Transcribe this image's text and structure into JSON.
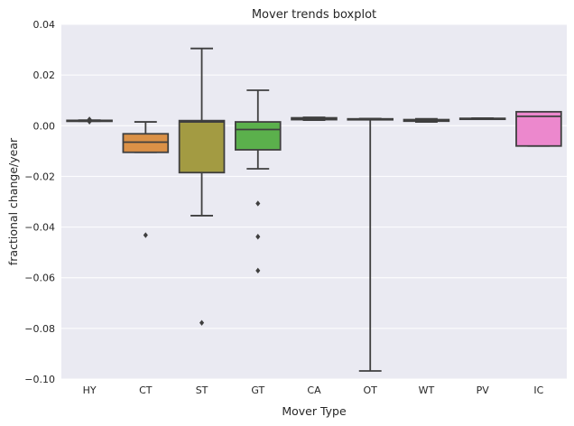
{
  "chart_data": {
    "type": "boxplot",
    "title": "Mover trends boxplot",
    "xlabel": "Mover Type",
    "ylabel": "fractional change/year",
    "ylim": [
      -0.1,
      0.04
    ],
    "yticks": [
      -0.1,
      -0.08,
      -0.06,
      -0.04,
      -0.02,
      0.0,
      0.02,
      0.04
    ],
    "ytick_labels": [
      "−0.10",
      "−0.08",
      "−0.06",
      "−0.04",
      "−0.02",
      "0.00",
      "0.02",
      "0.04"
    ],
    "grid": true,
    "background": "#eaeaf2",
    "categories": [
      "HY",
      "CT",
      "ST",
      "GT",
      "CA",
      "OT",
      "WT",
      "PV",
      "IC"
    ],
    "boxes": [
      {
        "category": "HY",
        "color": "#ea96a3",
        "whislo": 0.0018,
        "q1": 0.0019,
        "med": 0.002,
        "q3": 0.0021,
        "whishi": 0.0022,
        "fliers": [
          0.0016,
          0.0025
        ]
      },
      {
        "category": "CT",
        "color": "#db9147",
        "whislo": -0.0105,
        "q1": -0.0105,
        "med": -0.0065,
        "q3": -0.0032,
        "whishi": 0.0015,
        "fliers": [
          -0.0432
        ]
      },
      {
        "category": "ST",
        "color": "#a39b42",
        "whislo": -0.0355,
        "q1": -0.0185,
        "med": 0.0015,
        "q3": 0.002,
        "whishi": 0.0305,
        "fliers": [
          -0.0778
        ]
      },
      {
        "category": "GT",
        "color": "#5bb04c",
        "whislo": -0.017,
        "q1": -0.0095,
        "med": -0.0015,
        "q3": 0.0015,
        "whishi": 0.014,
        "fliers": [
          -0.0307,
          -0.0438,
          -0.0572
        ]
      },
      {
        "category": "CA",
        "color": "#38ab88",
        "whislo": 0.0022,
        "q1": 0.0024,
        "med": 0.0028,
        "q3": 0.0031,
        "whishi": 0.0033,
        "fliers": []
      },
      {
        "category": "OT",
        "color": "#3aa6b1",
        "whislo": -0.0968,
        "q1": 0.0025,
        "med": 0.0026,
        "q3": 0.0027,
        "whishi": 0.0028,
        "fliers": []
      },
      {
        "category": "WT",
        "color": "#67a2e8",
        "whislo": 0.0015,
        "q1": 0.0018,
        "med": 0.0021,
        "q3": 0.0024,
        "whishi": 0.0027,
        "fliers": []
      },
      {
        "category": "PV",
        "color": "#bb90e6",
        "whislo": 0.0026,
        "q1": 0.0027,
        "med": 0.0028,
        "q3": 0.0029,
        "whishi": 0.003,
        "fliers": []
      },
      {
        "category": "IC",
        "color": "#ec88cd",
        "whislo": -0.008,
        "q1": -0.008,
        "med": 0.0037,
        "q3": 0.0055,
        "whishi": 0.0055,
        "fliers": []
      }
    ]
  }
}
